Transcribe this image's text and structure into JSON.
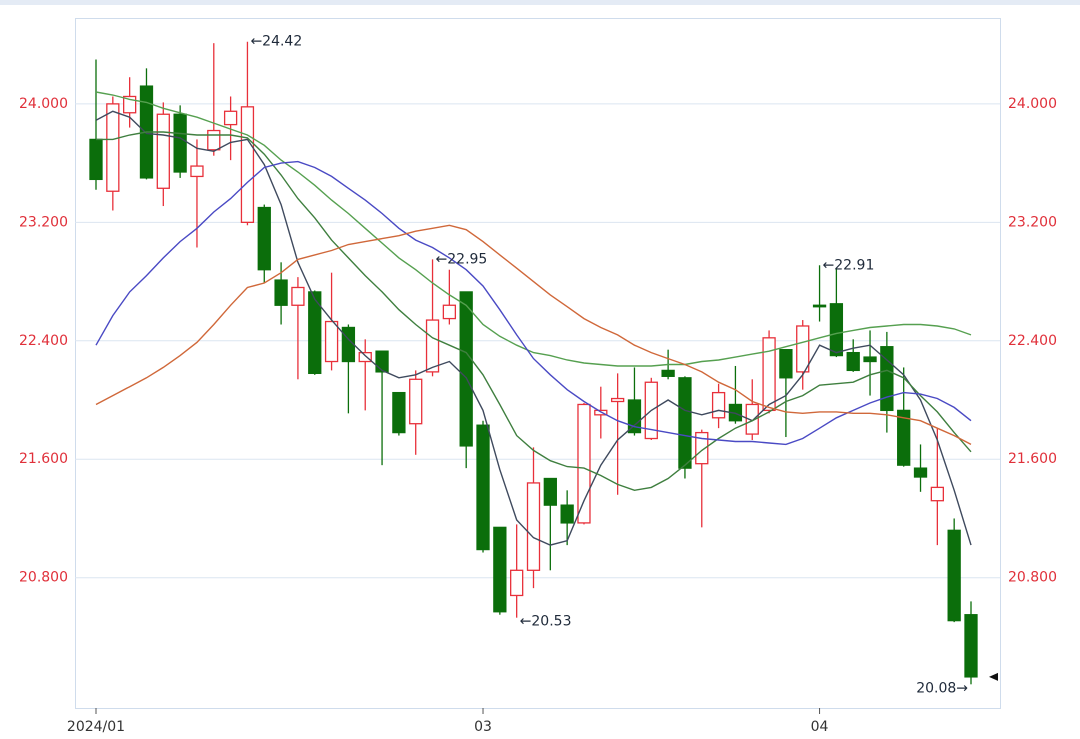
{
  "chart_data": {
    "type": "candlestick",
    "categories": [
      "2024/01",
      null,
      null,
      null,
      null,
      null,
      null,
      null,
      null,
      null,
      null,
      null,
      null,
      null,
      null,
      null,
      null,
      null,
      null,
      null,
      null,
      null,
      null,
      "03",
      null,
      null,
      null,
      null,
      null,
      null,
      null,
      null,
      null,
      null,
      null,
      null,
      null,
      null,
      null,
      null,
      null,
      null,
      null,
      "04",
      null,
      null,
      null,
      null,
      null,
      null,
      null,
      null,
      null
    ],
    "open": [
      23.76,
      23.41,
      23.94,
      24.12,
      23.43,
      23.93,
      23.51,
      23.69,
      23.86,
      23.2,
      23.3,
      22.81,
      22.64,
      22.73,
      22.26,
      22.49,
      22.26,
      22.33,
      22.05,
      21.84,
      22.19,
      22.55,
      22.73,
      21.83,
      21.14,
      20.68,
      20.85,
      21.47,
      21.29,
      21.17,
      21.9,
      21.99,
      22.0,
      21.74,
      22.2,
      22.15,
      21.57,
      21.88,
      21.97,
      21.77,
      21.93,
      22.34,
      22.19,
      22.64,
      22.65,
      22.32,
      22.29,
      22.36,
      21.93,
      21.54,
      21.32,
      21.12,
      20.55
    ],
    "high": [
      24.3,
      24.05,
      24.18,
      24.24,
      24.01,
      23.99,
      23.76,
      24.41,
      24.05,
      24.42,
      23.32,
      22.93,
      22.83,
      22.74,
      22.86,
      22.51,
      22.41,
      22.33,
      22.05,
      22.2,
      22.95,
      22.88,
      22.73,
      21.86,
      21.14,
      21.16,
      21.68,
      21.47,
      21.39,
      21.98,
      22.09,
      22.18,
      22.22,
      22.15,
      22.34,
      22.16,
      21.8,
      22.11,
      22.23,
      22.14,
      22.47,
      22.34,
      22.54,
      22.91,
      22.89,
      22.41,
      22.47,
      22.46,
      22.22,
      21.7,
      21.81,
      21.2,
      20.64
    ],
    "low": [
      23.42,
      23.28,
      23.84,
      23.49,
      23.31,
      23.5,
      23.03,
      23.65,
      23.62,
      23.18,
      22.79,
      22.51,
      22.14,
      22.17,
      22.2,
      21.91,
      21.93,
      21.56,
      21.76,
      21.63,
      22.16,
      22.51,
      21.54,
      20.97,
      20.55,
      20.53,
      20.73,
      20.85,
      21.02,
      21.16,
      21.74,
      21.36,
      21.76,
      21.73,
      22.14,
      21.47,
      21.14,
      21.81,
      21.84,
      21.73,
      21.91,
      21.75,
      22.07,
      22.53,
      22.29,
      22.19,
      22.03,
      21.78,
      21.55,
      21.38,
      21.02,
      20.5,
      20.08
    ],
    "close": [
      23.49,
      24.0,
      24.05,
      23.5,
      23.93,
      23.54,
      23.58,
      23.82,
      23.95,
      23.98,
      22.88,
      22.64,
      22.76,
      22.18,
      22.53,
      22.26,
      22.32,
      22.19,
      21.78,
      22.14,
      22.54,
      22.64,
      21.69,
      20.99,
      20.57,
      20.85,
      21.44,
      21.29,
      21.17,
      21.97,
      21.93,
      22.01,
      21.78,
      22.12,
      22.16,
      21.54,
      21.78,
      22.05,
      21.86,
      21.97,
      22.42,
      22.15,
      22.5,
      22.63,
      22.3,
      22.2,
      22.26,
      21.93,
      21.56,
      21.48,
      21.41,
      20.51,
      20.13
    ],
    "up_color": "#e8303a",
    "down_color": "#0b6e0b",
    "series": [
      {
        "color": "#3f4a5e",
        "values": [
          23.89,
          23.95,
          23.91,
          23.8,
          23.79,
          23.77,
          23.7,
          23.68,
          23.74,
          23.76,
          23.59,
          23.32,
          22.93,
          22.68,
          22.54,
          22.41,
          22.3,
          22.2,
          22.15,
          22.17,
          22.22,
          22.26,
          22.15,
          21.93,
          21.53,
          21.19,
          21.07,
          21.02,
          21.05,
          21.32,
          21.56,
          21.73,
          21.83,
          21.93,
          22.0,
          21.93,
          21.9,
          21.93,
          21.91,
          21.86,
          21.97,
          22.03,
          22.17,
          22.37,
          22.32,
          22.35,
          22.37,
          22.27,
          22.17,
          22.0,
          21.73,
          21.39,
          21.02
        ]
      },
      {
        "color": "#3f7f3f",
        "values": [
          23.76,
          23.76,
          23.79,
          23.81,
          23.81,
          23.8,
          23.79,
          23.79,
          23.79,
          23.77,
          23.66,
          23.52,
          23.36,
          23.23,
          23.08,
          22.96,
          22.84,
          22.73,
          22.61,
          22.51,
          22.42,
          22.37,
          22.32,
          22.17,
          21.97,
          21.76,
          21.66,
          21.59,
          21.55,
          21.54,
          21.49,
          21.43,
          21.39,
          21.41,
          21.47,
          21.56,
          21.66,
          21.74,
          21.81,
          21.86,
          21.92,
          21.99,
          22.03,
          22.1,
          22.11,
          22.12,
          22.17,
          22.2,
          22.15,
          22.03,
          21.92,
          21.78,
          21.65
        ]
      },
      {
        "color": "#56a050",
        "values": [
          24.08,
          24.06,
          24.03,
          24.01,
          23.97,
          23.94,
          23.91,
          23.87,
          23.83,
          23.79,
          23.72,
          23.62,
          23.54,
          23.45,
          23.35,
          23.26,
          23.16,
          23.06,
          22.96,
          22.88,
          22.79,
          22.71,
          22.64,
          22.51,
          22.43,
          22.37,
          22.32,
          22.3,
          22.27,
          22.25,
          22.24,
          22.23,
          22.23,
          22.23,
          22.24,
          22.24,
          22.26,
          22.27,
          22.29,
          22.31,
          22.33,
          22.36,
          22.39,
          22.42,
          22.45,
          22.47,
          22.49,
          22.5,
          22.51,
          22.51,
          22.5,
          22.48,
          22.44
        ]
      },
      {
        "color": "#4a4ac4",
        "values": [
          22.37,
          22.57,
          22.73,
          22.84,
          22.96,
          23.07,
          23.16,
          23.27,
          23.36,
          23.47,
          23.57,
          23.6,
          23.61,
          23.57,
          23.51,
          23.43,
          23.35,
          23.26,
          23.16,
          23.08,
          23.03,
          22.96,
          22.88,
          22.77,
          22.61,
          22.44,
          22.28,
          22.17,
          22.07,
          21.99,
          21.92,
          21.86,
          21.82,
          21.8,
          21.78,
          21.76,
          21.74,
          21.73,
          21.72,
          21.72,
          21.71,
          21.7,
          21.74,
          21.81,
          21.88,
          21.93,
          21.98,
          22.02,
          22.05,
          22.04,
          22.01,
          21.95,
          21.86
        ]
      },
      {
        "color": "#d0683a",
        "values": [
          21.97,
          22.03,
          22.09,
          22.15,
          22.22,
          22.3,
          22.39,
          22.51,
          22.64,
          22.76,
          22.79,
          22.86,
          22.95,
          22.98,
          23.01,
          23.05,
          23.07,
          23.09,
          23.11,
          23.14,
          23.16,
          23.18,
          23.15,
          23.07,
          22.98,
          22.89,
          22.8,
          22.71,
          22.63,
          22.55,
          22.49,
          22.44,
          22.37,
          22.32,
          22.28,
          22.24,
          22.19,
          22.12,
          22.07,
          21.99,
          21.95,
          21.92,
          21.91,
          21.92,
          21.92,
          21.91,
          21.91,
          21.9,
          21.88,
          21.86,
          21.81,
          21.76,
          21.7
        ]
      }
    ],
    "annotations": [
      "←24.42",
      "←22.95",
      "←20.53",
      "←22.91",
      "20.08→"
    ],
    "ylim": [
      19.92,
      24.58
    ],
    "yticks": [
      {
        "value": 20.8,
        "label": "20.800"
      },
      {
        "value": 21.6,
        "label": "21.600"
      },
      {
        "value": 22.4,
        "label": "22.400"
      },
      {
        "value": 23.2,
        "label": "23.200"
      },
      {
        "value": 24.0,
        "label": "24.000"
      }
    ],
    "grid": true
  }
}
